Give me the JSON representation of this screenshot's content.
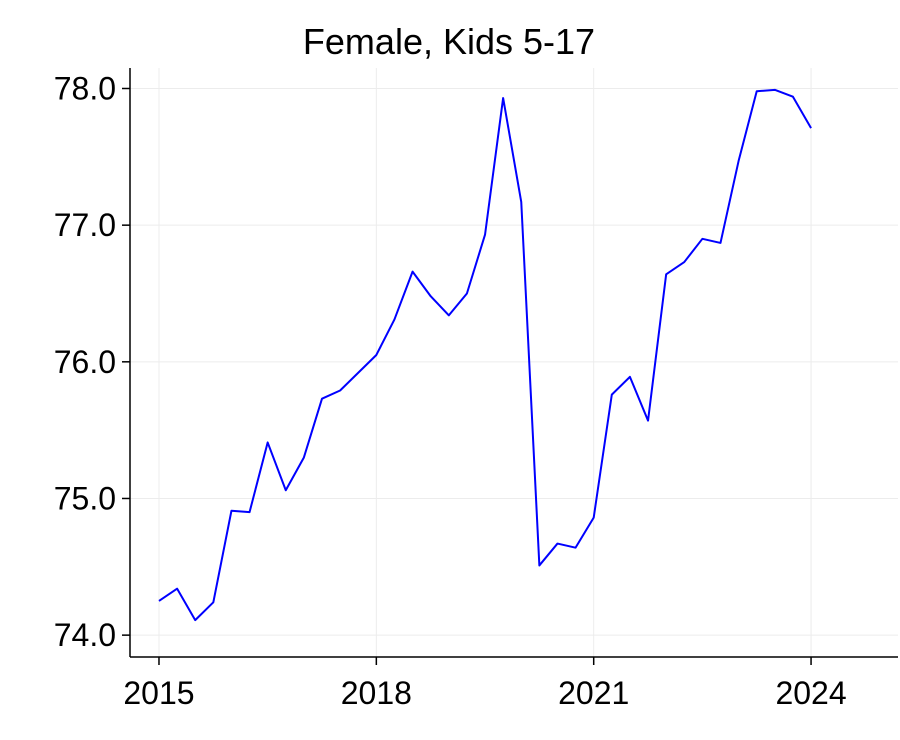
{
  "chart_data": {
    "type": "line",
    "title": "Female, Kids 5-17",
    "xlabel": "",
    "ylabel": "",
    "xlim": [
      2014.6,
      2025.2
    ],
    "ylim": [
      73.84,
      78.15
    ],
    "xticks": [
      2015,
      2018,
      2021,
      2024
    ],
    "xtick_labels": [
      "2015",
      "2018",
      "2021",
      "2024"
    ],
    "yticks": [
      74.0,
      75.0,
      76.0,
      77.0,
      78.0
    ],
    "ytick_labels": [
      "74.0",
      "75.0",
      "76.0",
      "77.0",
      "78.0"
    ],
    "grid": true,
    "series": [
      {
        "name": "Female, Kids 5-17",
        "color": "#0000ff",
        "x": [
          2015.0,
          2015.25,
          2015.5,
          2015.75,
          2016.0,
          2016.25,
          2016.5,
          2016.75,
          2017.0,
          2017.25,
          2017.5,
          2017.75,
          2018.0,
          2018.25,
          2018.5,
          2018.75,
          2019.0,
          2019.25,
          2019.5,
          2019.75,
          2020.0,
          2020.25,
          2020.5,
          2020.75,
          2021.0,
          2021.25,
          2021.5,
          2021.75,
          2022.0,
          2022.25,
          2022.5,
          2022.75,
          2023.0,
          2023.25,
          2023.5,
          2023.75,
          2024.0
        ],
        "values": [
          74.25,
          74.34,
          74.11,
          74.24,
          74.91,
          74.9,
          75.41,
          75.06,
          75.3,
          75.73,
          75.79,
          75.92,
          76.05,
          76.31,
          76.66,
          76.48,
          76.34,
          76.5,
          76.93,
          77.93,
          77.17,
          74.51,
          74.67,
          74.64,
          74.86,
          75.76,
          75.89,
          75.57,
          76.64,
          76.73,
          76.9,
          76.87,
          77.47,
          77.98,
          77.99,
          77.94,
          77.71
        ]
      }
    ]
  }
}
